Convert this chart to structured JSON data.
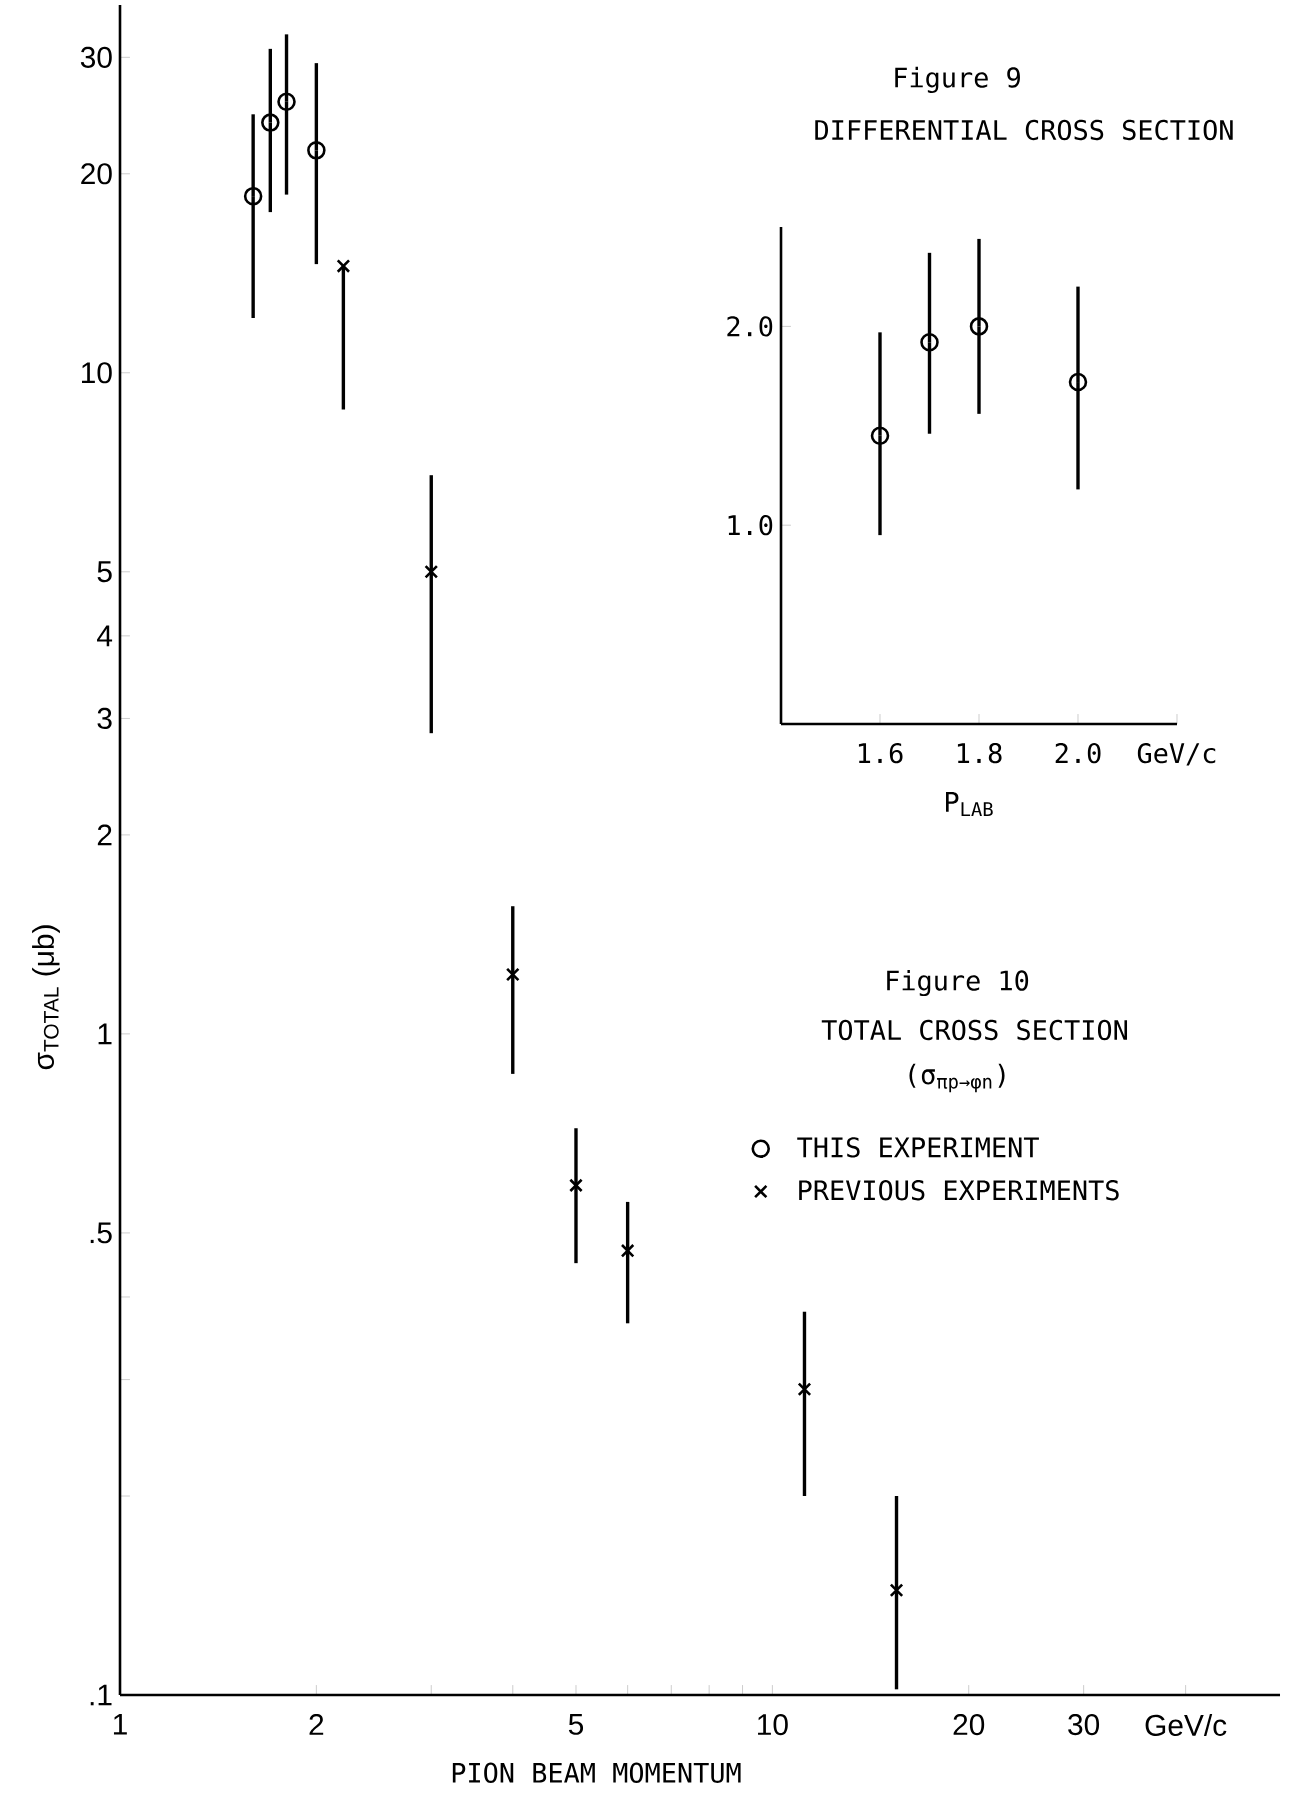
{
  "chart_data": [
    {
      "type": "scatter",
      "title": "Figure 10",
      "subtitle": "TOTAL CROSS SECTION",
      "xlabel": "PION BEAM MOMENTUM",
      "ylabel": "σ$_{TOTAL}$ (μb)",
      "annotations": [
        "(σ$_{πp→φn}$)"
      ],
      "log": "xy",
      "xlim": [
        1,
        60
      ],
      "ylim": [
        0.1,
        36
      ],
      "xticks": [
        1,
        2,
        {
          "value": 3,
          "label": null
        },
        {
          "value": 4,
          "label": null
        },
        5,
        {
          "value": 6,
          "label": null
        },
        {
          "value": 7,
          "label": null
        },
        {
          "value": 8,
          "label": null
        },
        {
          "value": 9,
          "label": null
        },
        10,
        20,
        30,
        {
          "value": 43,
          "label": "GeV/c"
        }
      ],
      "yticks": [
        {
          "value": 0.1,
          "label": ".1"
        },
        {
          "value": 0.2,
          "label": null
        },
        {
          "value": 0.3,
          "label": null
        },
        {
          "value": 0.4,
          "label": null
        },
        {
          "value": 0.5,
          "label": ".5"
        },
        1,
        2,
        3,
        4,
        5,
        10,
        20,
        30
      ],
      "legend": "right",
      "series": [
        {
          "name": "THIS EXPERIMENT",
          "color": "#000000",
          "marker": "circle",
          "x": [
            1.6,
            1.7,
            1.8,
            2.0
          ],
          "values": [
            18.5,
            23.9,
            25.7,
            21.7
          ],
          "errors": [
            [
              12.1,
              24.6
            ],
            [
              17.5,
              30.9
            ],
            [
              18.6,
              32.5
            ],
            [
              14.6,
              29.4
            ]
          ]
        },
        {
          "name": "PREVIOUS EXPERIMENTS",
          "color": "#000000",
          "marker": "cross",
          "x": [
            2.2,
            3,
            4,
            5,
            6,
            11.2,
            15.5
          ],
          "values": [
            14.5,
            5.0,
            1.23,
            0.59,
            0.47,
            0.29,
            0.144
          ],
          "errors": [
            [
              8.8,
              14.5
            ],
            [
              2.85,
              7.0
            ],
            [
              0.87,
              1.56
            ],
            [
              0.45,
              0.72
            ],
            [
              0.365,
              0.557
            ],
            [
              0.2,
              0.38
            ],
            [
              0.102,
              0.2
            ]
          ]
        }
      ]
    },
    {
      "type": "scatter",
      "title": "Figure 9",
      "subtitle": "DIFFERENTIAL CROSS SECTION",
      "xlabel": "P$_{LAB}$",
      "xlim": [
        1.4,
        2.2
      ],
      "ylim": [
        0,
        2.5
      ],
      "xticks": [
        1.6,
        1.8,
        {
          "value": 2.0,
          "label": "2.0"
        },
        {
          "value": 2.2,
          "label": "GeV/c"
        }
      ],
      "yticks": [
        {
          "value": 1,
          "label": "1.0"
        },
        {
          "value": 2,
          "label": "2.0"
        }
      ],
      "series": [
        {
          "color": "#000000",
          "marker": "circle",
          "x": [
            1.6,
            1.7,
            1.8,
            2.0
          ],
          "values": [
            1.45,
            1.92,
            2.0,
            1.72
          ],
          "errors": [
            [
              0.95,
              1.97
            ],
            [
              1.46,
              2.37
            ],
            [
              1.56,
              2.44
            ],
            [
              1.18,
              2.2
            ]
          ]
        }
      ]
    }
  ]
}
